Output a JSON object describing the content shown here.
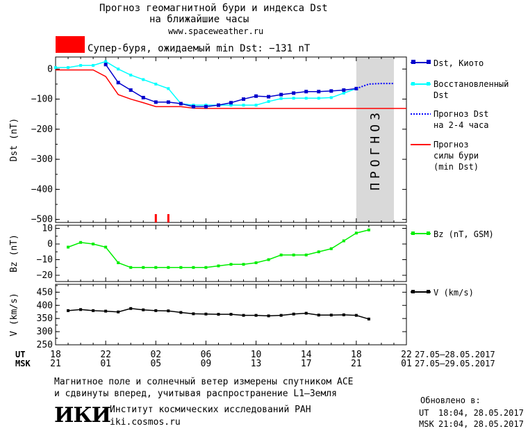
{
  "header": {
    "title_line1": "Прогноз геомагнитной бури и индекса Dst",
    "title_line2": "на ближайшие часы",
    "url": "www.spaceweather.ru",
    "storm_label": "Супер-буря, ожидаемый min Dst: −131 nT",
    "storm_color": "#ff0000"
  },
  "legend": {
    "dst_kyoto": "Dst, Киото",
    "restored_1": "Восстановленный",
    "restored_2": "Dst",
    "forecast_1": "Прогноз Dst",
    "forecast_2": "на 2-4 часа",
    "storm_1": "Прогноз",
    "storm_2": "силы бури",
    "storm_3": "(min Dst)",
    "bz": "Bz (nT, GSM)",
    "v": "V (km/s)"
  },
  "time_axis": {
    "ut_label": "UT",
    "msk_label": "MSK",
    "ut_ticks": [
      "18",
      "22",
      "02",
      "06",
      "10",
      "14",
      "18",
      "22"
    ],
    "msk_ticks": [
      "21",
      "01",
      "05",
      "09",
      "13",
      "17",
      "21",
      "01"
    ],
    "ut_range": "27.05–28.05.2017",
    "msk_range": "27.05–29.05.2017"
  },
  "forecast_zone_label": "ПРОГНОЗ",
  "footer": {
    "note_line1": "Магнитное поле и солнечный ветер измерены спутником ACE",
    "note_line2": "и сдвинуты вперед, учитывая распространение L1–Земля",
    "institute": "Институт космических исследований РАН",
    "site": "iki.cosmos.ru",
    "logo": "ИКИ",
    "updated_label": "Обновлено в:",
    "updated_ut_label": "UT",
    "updated_ut": "18:04, 28.05.2017",
    "updated_msk_label": "MSK",
    "updated_msk": "21:04, 28.05.2017"
  },
  "chart_data": [
    {
      "type": "line",
      "panel": "dst",
      "ylabel": "Dst (nT)",
      "ylim": [
        -510,
        40
      ],
      "yticks": [
        0,
        -100,
        -200,
        -300,
        -400,
        -500
      ],
      "xlim": [
        0,
        28
      ],
      "forecast_region": [
        24,
        27
      ],
      "colors": {
        "kyoto": "#0000cc",
        "restored": "#00ffff",
        "forecast": "#0000ff",
        "storm": "#ff0000",
        "forecast_zone": "#d9d9d9"
      },
      "series": [
        {
          "name": "Dst, Киото",
          "x": [
            4,
            5,
            6,
            7,
            8,
            9,
            10,
            11,
            12,
            13,
            14,
            15,
            16,
            17,
            18,
            19,
            20,
            21,
            22,
            23,
            24
          ],
          "values": [
            15,
            -45,
            -70,
            -95,
            -110,
            -110,
            -115,
            -125,
            -125,
            -120,
            -112,
            -100,
            -90,
            -92,
            -85,
            -80,
            -75,
            -75,
            -73,
            -70,
            -65
          ]
        },
        {
          "name": "Восстановленный Dst",
          "x": [
            0,
            1,
            2,
            3,
            4,
            5,
            6,
            7,
            8,
            9,
            10,
            11,
            12,
            13,
            14,
            15,
            16,
            17,
            18,
            19,
            20,
            21,
            22,
            23,
            24
          ],
          "values": [
            5,
            5,
            12,
            12,
            25,
            0,
            -20,
            -35,
            -50,
            -65,
            -115,
            -120,
            -120,
            -120,
            -120,
            -120,
            -120,
            -108,
            -98,
            -97,
            -97,
            -97,
            -95,
            -80,
            -65
          ]
        },
        {
          "name": "Прогноз Dst на 2-4 часа",
          "x": [
            24,
            25,
            26,
            27
          ],
          "values": [
            -65,
            -50,
            -48,
            -48
          ]
        },
        {
          "name": "Прогноз силы бури (min Dst)",
          "x": [
            0,
            1,
            2,
            3,
            4,
            5,
            6,
            7,
            8,
            9,
            10,
            11,
            12,
            13,
            14,
            15,
            16,
            17,
            18,
            19,
            20,
            21,
            22,
            23,
            24,
            25,
            26,
            27,
            28
          ],
          "values": [
            -3,
            -3,
            -3,
            -3,
            -25,
            -85,
            -100,
            -112,
            -125,
            -125,
            -125,
            -130,
            -131,
            -131,
            -131,
            -131,
            -131,
            -131,
            -131,
            -131,
            -131,
            -131,
            -131,
            -131,
            -131,
            -131,
            -131,
            -131,
            -131
          ]
        }
      ],
      "storm_markers_x": [
        8,
        9
      ]
    },
    {
      "type": "line",
      "panel": "bz",
      "ylabel": "Bz (nT)",
      "ylim": [
        -24,
        12
      ],
      "yticks": [
        10,
        0,
        -10,
        -20
      ],
      "xlim": [
        0,
        28
      ],
      "series": [
        {
          "name": "Bz (nT, GSM)",
          "color": "#00ee00",
          "x": [
            1,
            2,
            3,
            4,
            5,
            6,
            7,
            8,
            9,
            10,
            11,
            12,
            13,
            14,
            15,
            16,
            17,
            18,
            19,
            20,
            21,
            22,
            23,
            24,
            25
          ],
          "values": [
            -2,
            1,
            0,
            -2,
            -12,
            -15,
            -15,
            -15,
            -15,
            -15,
            -15,
            -15,
            -14,
            -13,
            -13,
            -12,
            -10,
            -7,
            -7,
            -7,
            -5,
            -3,
            2,
            7,
            9
          ]
        }
      ]
    },
    {
      "type": "line",
      "panel": "v",
      "ylabel": "V (km/s)",
      "ylim": [
        250,
        480
      ],
      "yticks": [
        450,
        400,
        350,
        300,
        250
      ],
      "xlim": [
        0,
        28
      ],
      "series": [
        {
          "name": "V (km/s)",
          "color": "#000000",
          "x": [
            1,
            2,
            3,
            4,
            5,
            6,
            7,
            8,
            9,
            10,
            11,
            12,
            13,
            14,
            15,
            16,
            17,
            18,
            19,
            20,
            21,
            22,
            23,
            24,
            25
          ],
          "values": [
            380,
            384,
            380,
            378,
            375,
            388,
            383,
            380,
            379,
            373,
            368,
            367,
            366,
            366,
            362,
            362,
            360,
            362,
            367,
            370,
            363,
            363,
            364,
            362,
            348
          ]
        }
      ]
    }
  ]
}
